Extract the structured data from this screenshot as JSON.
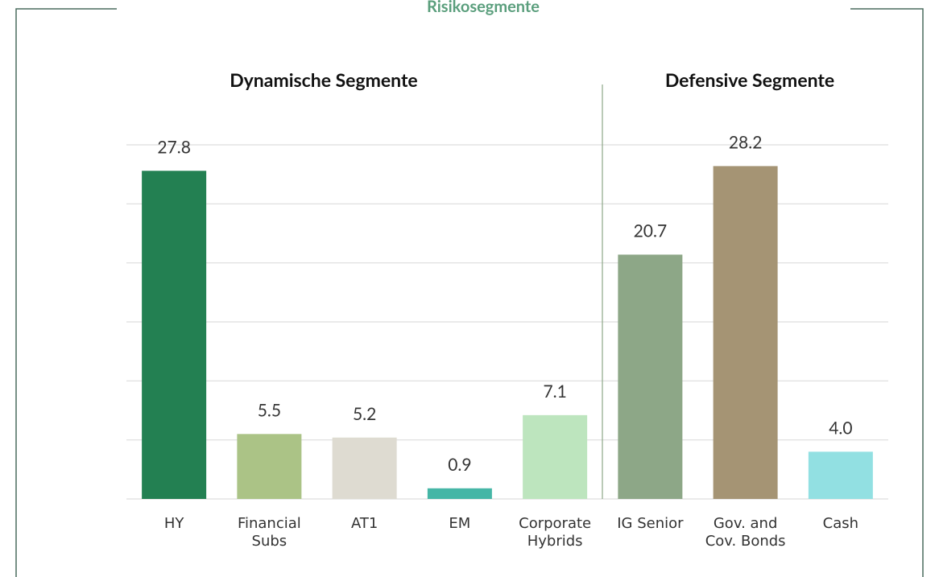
{
  "chart_data": {
    "type": "bar",
    "title": "Risikosegmente",
    "sections": [
      "Dynamische Segmente",
      "Defensive Segmente"
    ],
    "categories": [
      "HY",
      "Financial Subs",
      "AT1",
      "EM",
      "Corporate Hybrids",
      "IG Senior",
      "Gov. and Cov. Bonds",
      "Cash"
    ],
    "values": [
      27.8,
      5.5,
      5.2,
      0.9,
      7.1,
      20.7,
      28.2,
      4.0
    ],
    "value_labels": [
      "27.8",
      "5.5",
      "5.2",
      "0.9",
      "7.1",
      "20.7",
      "28.2",
      "4.0"
    ],
    "colors": [
      "#238052",
      "#abc386",
      "#dedbd1",
      "#45b6a6",
      "#bde5be",
      "#8da787",
      "#a59474",
      "#92e0e2"
    ],
    "ylim": [
      0,
      30
    ],
    "yticks": [
      0,
      5,
      10,
      15,
      20,
      25,
      30
    ],
    "grid": true
  }
}
